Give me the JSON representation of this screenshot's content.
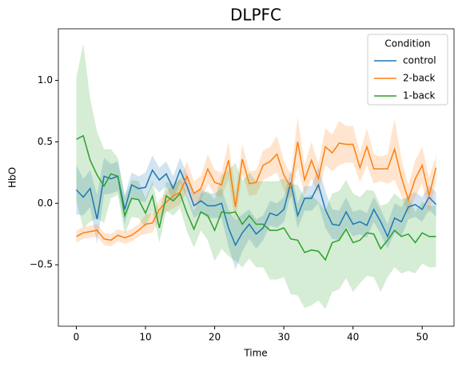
{
  "chart_data": {
    "type": "line",
    "title": "DLPFC",
    "xlabel": "Time",
    "ylabel": "HbO",
    "x": [
      0,
      1,
      2,
      3,
      4,
      5,
      6,
      7,
      8,
      9,
      10,
      11,
      12,
      13,
      14,
      15,
      16,
      17,
      18,
      19,
      20,
      21,
      22,
      23,
      24,
      25,
      26,
      27,
      28,
      29,
      30,
      31,
      32,
      33,
      34,
      35,
      36,
      37,
      38,
      39,
      40,
      41,
      42,
      43,
      44,
      45,
      46,
      47,
      48,
      49,
      50,
      51,
      52
    ],
    "xlim": [
      -2.6,
      54.6
    ],
    "xticks": [
      0,
      10,
      20,
      30,
      40,
      50
    ],
    "ylim": [
      -1.0,
      1.42
    ],
    "yticks": [
      {
        "value": -0.5,
        "label": "−0.5"
      },
      {
        "value": 0,
        "label": "0.0"
      },
      0.5,
      {
        "value": 1.0,
        "label": "1.0"
      }
    ],
    "legend_title": "Condition",
    "legend": "upper right",
    "series": [
      {
        "name": "control",
        "color": "#1f77b4",
        "values": [
          0.11,
          0.05,
          0.12,
          -0.13,
          0.22,
          0.2,
          0.22,
          -0.05,
          0.15,
          0.12,
          0.13,
          0.27,
          0.19,
          0.24,
          0.12,
          0.27,
          0.14,
          -0.02,
          0.02,
          -0.02,
          -0.02,
          0.0,
          -0.2,
          -0.34,
          -0.24,
          -0.17,
          -0.25,
          -0.2,
          -0.08,
          -0.1,
          -0.05,
          0.17,
          -0.1,
          0.04,
          0.04,
          0.15,
          -0.05,
          -0.17,
          -0.18,
          -0.07,
          -0.17,
          -0.15,
          -0.18,
          -0.05,
          -0.15,
          -0.27,
          -0.12,
          -0.15,
          -0.03,
          -0.01,
          -0.05,
          0.05,
          -0.01
        ],
        "error": [
          0.2,
          0.15,
          0.15,
          0.2,
          0.15,
          0.12,
          0.12,
          0.12,
          0.1,
          0.1,
          0.12,
          0.12,
          0.1,
          0.1,
          0.1,
          0.1,
          0.1,
          0.1,
          0.1,
          0.1,
          0.1,
          0.12,
          0.15,
          0.2,
          0.15,
          0.12,
          0.12,
          0.1,
          0.1,
          0.1,
          0.1,
          0.1,
          0.1,
          0.1,
          0.1,
          0.15,
          0.15,
          0.12,
          0.12,
          0.12,
          0.1,
          0.1,
          0.1,
          0.1,
          0.1,
          0.1,
          0.12,
          0.12,
          0.1,
          0.1,
          0.1,
          0.1,
          0.1
        ]
      },
      {
        "name": "2-back",
        "color": "#ff7f0e",
        "values": [
          -0.27,
          -0.24,
          -0.23,
          -0.22,
          -0.29,
          -0.3,
          -0.26,
          -0.28,
          -0.26,
          -0.22,
          -0.17,
          -0.16,
          -0.05,
          0.01,
          0.06,
          0.09,
          0.22,
          0.08,
          0.12,
          0.28,
          0.17,
          0.15,
          0.35,
          -0.03,
          0.36,
          0.16,
          0.17,
          0.31,
          0.34,
          0.4,
          0.23,
          0.13,
          0.5,
          0.19,
          0.35,
          0.2,
          0.46,
          0.41,
          0.49,
          0.48,
          0.48,
          0.29,
          0.46,
          0.28,
          0.28,
          0.28,
          0.44,
          0.21,
          0.03,
          0.2,
          0.31,
          0.06,
          0.29
        ],
        "error": [
          0.05,
          0.05,
          0.05,
          0.05,
          0.05,
          0.05,
          0.05,
          0.05,
          0.05,
          0.05,
          0.08,
          0.08,
          0.08,
          0.08,
          0.1,
          0.1,
          0.12,
          0.1,
          0.1,
          0.12,
          0.1,
          0.1,
          0.15,
          0.12,
          0.12,
          0.1,
          0.1,
          0.12,
          0.12,
          0.15,
          0.12,
          0.1,
          0.2,
          0.12,
          0.15,
          0.12,
          0.15,
          0.15,
          0.18,
          0.15,
          0.15,
          0.12,
          0.15,
          0.12,
          0.1,
          0.12,
          0.25,
          0.15,
          0.12,
          0.15,
          0.15,
          0.15,
          0.1
        ]
      },
      {
        "name": "1-back",
        "color": "#2ca02c",
        "values": [
          0.52,
          0.55,
          0.35,
          0.23,
          0.14,
          0.24,
          0.22,
          -0.1,
          0.04,
          0.03,
          -0.08,
          0.06,
          -0.2,
          0.06,
          0.02,
          0.08,
          -0.08,
          -0.21,
          -0.07,
          -0.1,
          -0.22,
          -0.07,
          -0.08,
          -0.07,
          -0.17,
          -0.1,
          -0.17,
          -0.17,
          -0.22,
          -0.22,
          -0.2,
          -0.29,
          -0.3,
          -0.4,
          -0.38,
          -0.39,
          -0.46,
          -0.32,
          -0.3,
          -0.21,
          -0.32,
          -0.3,
          -0.24,
          -0.25,
          -0.37,
          -0.3,
          -0.22,
          -0.27,
          -0.25,
          -0.32,
          -0.24,
          -0.27,
          -0.27
        ],
        "error": [
          0.5,
          0.75,
          0.5,
          0.35,
          0.3,
          0.2,
          0.15,
          0.15,
          0.15,
          0.15,
          0.12,
          0.12,
          0.12,
          0.12,
          0.12,
          0.12,
          0.15,
          0.15,
          0.15,
          0.2,
          0.25,
          0.3,
          0.35,
          0.4,
          0.35,
          0.35,
          0.35,
          0.35,
          0.4,
          0.4,
          0.4,
          0.45,
          0.45,
          0.45,
          0.45,
          0.4,
          0.4,
          0.4,
          0.4,
          0.4,
          0.4,
          0.35,
          0.35,
          0.35,
          0.35,
          0.3,
          0.3,
          0.3,
          0.3,
          0.25,
          0.25,
          0.25,
          0.25
        ]
      }
    ]
  }
}
